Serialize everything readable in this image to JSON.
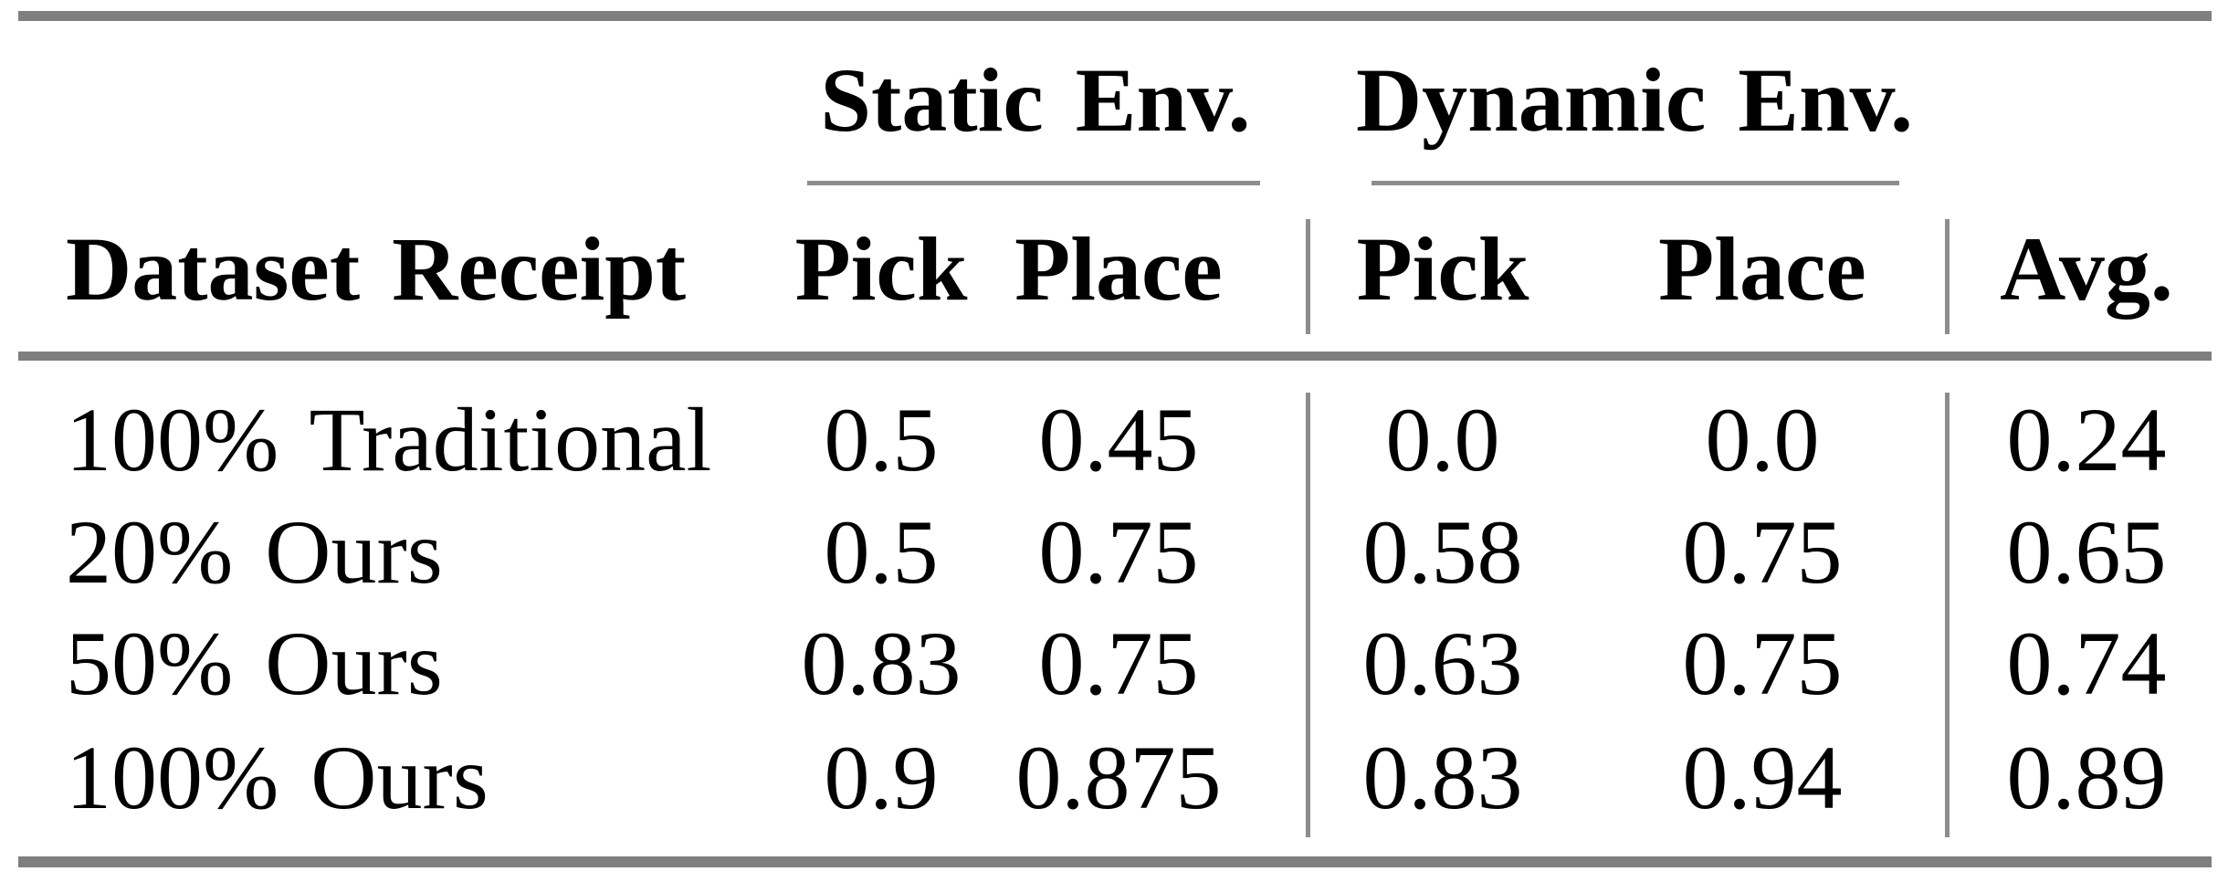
{
  "table": {
    "column_groups": {
      "static": "Static Env.",
      "dynamic": "Dynamic Env."
    },
    "headers": {
      "dataset": "Dataset Receipt",
      "static_pick": "Pick",
      "static_place": "Place",
      "dynamic_pick": "Pick",
      "dynamic_place": "Place",
      "avg": "Avg."
    },
    "rows": [
      {
        "label": "100% Traditional",
        "static_pick": "0.5",
        "static_place": "0.45",
        "dynamic_pick": "0.0",
        "dynamic_place": "0.0",
        "avg": "0.24"
      },
      {
        "label": "20% Ours",
        "static_pick": "0.5",
        "static_place": "0.75",
        "dynamic_pick": "0.58",
        "dynamic_place": "0.75",
        "avg": "0.65"
      },
      {
        "label": "50% Ours",
        "static_pick": "0.83",
        "static_place": "0.75",
        "dynamic_pick": "0.63",
        "dynamic_place": "0.75",
        "avg": "0.74"
      },
      {
        "label": "100% Ours",
        "static_pick": "0.9",
        "static_place": "0.875",
        "dynamic_pick": "0.83",
        "dynamic_place": "0.94",
        "avg": "0.89"
      }
    ],
    "colors": {
      "heavy_rule": "#7f7f7f",
      "thin_rule": "#8d8d8d",
      "text": "#000000",
      "background": "#ffffff"
    }
  }
}
